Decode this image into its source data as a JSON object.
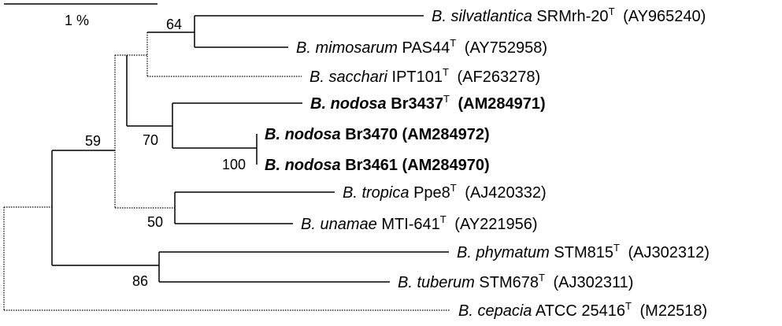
{
  "scale": {
    "label": "1 %"
  },
  "taxa": [
    {
      "id": "silvatlantica",
      "genus": "B.",
      "species": "silvatlantica",
      "strain": "SRMrh-20",
      "type_mark": "T",
      "accession": "(AY965240)",
      "bold": false
    },
    {
      "id": "mimosarum",
      "genus": "B.",
      "species": "mimosarum",
      "strain": "PAS44",
      "type_mark": "T",
      "accession": "(AY752958)",
      "bold": false
    },
    {
      "id": "sacchari",
      "genus": "B.",
      "species": "sacchari",
      "strain": "IPT101",
      "type_mark": "T",
      "accession": "(AF263278)",
      "bold": false
    },
    {
      "id": "nodosa3437",
      "genus": "B.",
      "species": "nodosa",
      "strain": "Br3437",
      "type_mark": "T",
      "accession": "(AM284971)",
      "bold": true
    },
    {
      "id": "nodosa3470",
      "genus": "B.",
      "species": "nodosa",
      "strain": "Br3470",
      "type_mark": "",
      "accession": "(AM284972)",
      "bold": true
    },
    {
      "id": "nodosa3461",
      "genus": "B.",
      "species": "nodosa",
      "strain": "Br3461",
      "type_mark": "",
      "accession": "(AM284970)",
      "bold": true
    },
    {
      "id": "tropica",
      "genus": "B.",
      "species": "tropica",
      "strain": "Ppe8",
      "type_mark": "T",
      "accession": "(AJ420332)",
      "bold": false
    },
    {
      "id": "unamae",
      "genus": "B.",
      "species": "unamae",
      "strain": "MTI-641",
      "type_mark": "T",
      "accession": "(AY221956)",
      "bold": false
    },
    {
      "id": "phymatum",
      "genus": "B.",
      "species": "phymatum",
      "strain": "STM815",
      "type_mark": "T",
      "accession": "(AJ302312)",
      "bold": false
    },
    {
      "id": "tuberum",
      "genus": "B.",
      "species": "tuberum",
      "strain": "STM678",
      "type_mark": "T",
      "accession": "(AJ302311)",
      "bold": false
    },
    {
      "id": "cepacia",
      "genus": "B.",
      "species": "cepacia",
      "strain": "ATCC 25416",
      "type_mark": "T",
      "accession": "(M22518)",
      "bold": false
    }
  ],
  "bootstrap": [
    {
      "node": "silvatlantica-mimosarum",
      "value": "64"
    },
    {
      "node": "nodosa-clade",
      "value": "70"
    },
    {
      "node": "nodosa-br3470-br3461",
      "value": "100"
    },
    {
      "node": "ingroup-main",
      "value": "59"
    },
    {
      "node": "tropica-unamae",
      "value": "50"
    },
    {
      "node": "phymatum-tuberum",
      "value": "86"
    }
  ]
}
